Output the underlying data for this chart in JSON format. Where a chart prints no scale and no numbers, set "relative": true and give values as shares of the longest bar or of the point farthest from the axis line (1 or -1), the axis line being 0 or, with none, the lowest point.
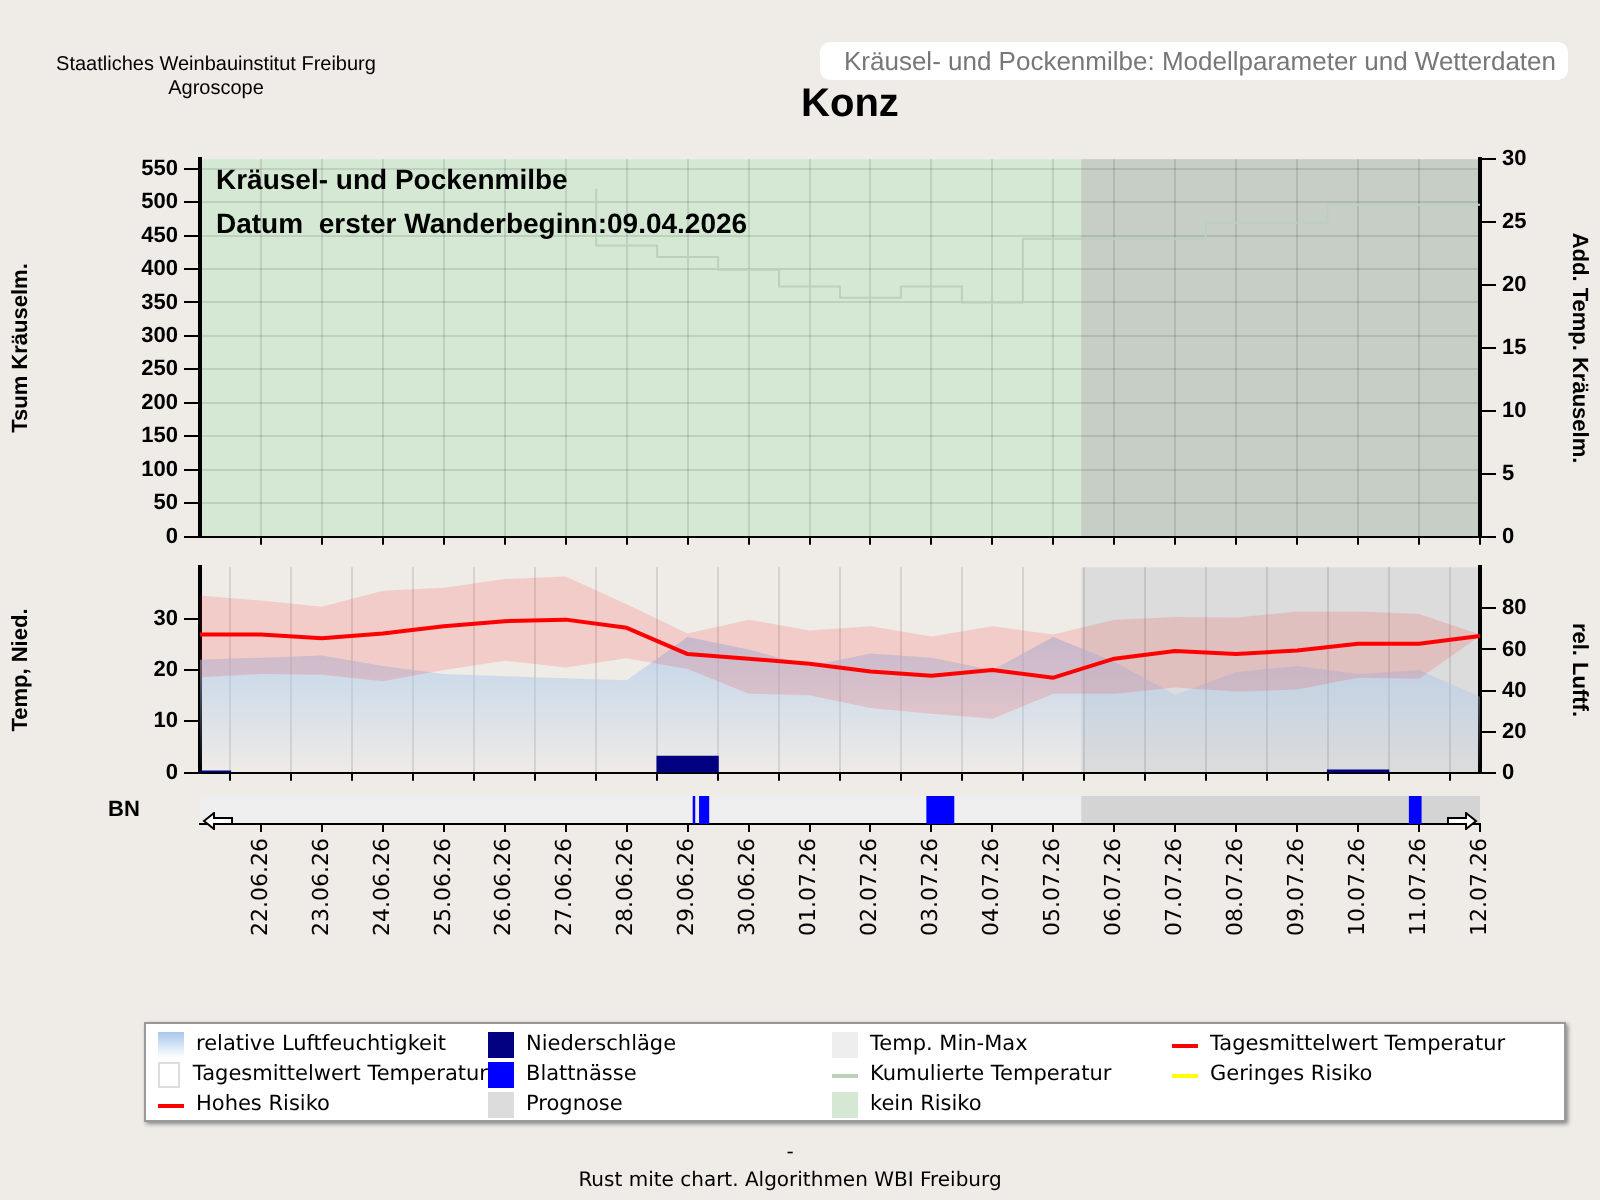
{
  "chart_data": [
    {
      "type": "line",
      "title": "Konz",
      "subtitle": "Kräusel- und Pockenmilbe: Modellparameter und Wetterdaten",
      "ylabel": "Tsum Kräuselm.",
      "y2label": "Add. Temp. Kräuselm.",
      "annotations": [
        "Kräusel- und Pockenmilbe",
        "Datum  erster Wanderbeginn:09.04.2026"
      ],
      "legend": "bottom",
      "xlim": [
        "2026-06-21",
        "2026-07-12"
      ],
      "xticks": [
        {
          "value": "2026-06-22",
          "label": null
        },
        {
          "value": "2026-06-23",
          "label": null
        },
        {
          "value": "2026-06-24",
          "label": null
        },
        {
          "value": "2026-06-25",
          "label": null
        },
        {
          "value": "2026-06-26",
          "label": null
        },
        {
          "value": "2026-06-27",
          "label": null
        },
        {
          "value": "2026-06-28",
          "label": null
        },
        {
          "value": "2026-06-29",
          "label": null
        },
        {
          "value": "2026-06-30",
          "label": null
        },
        {
          "value": "2026-07-01",
          "label": null
        },
        {
          "value": "2026-07-02",
          "label": null
        },
        {
          "value": "2026-07-03",
          "label": null
        },
        {
          "value": "2026-07-04",
          "label": null
        },
        {
          "value": "2026-07-05",
          "label": null
        },
        {
          "value": "2026-07-06",
          "label": null
        },
        {
          "value": "2026-07-07",
          "label": null
        },
        {
          "value": "2026-07-08",
          "label": null
        },
        {
          "value": "2026-07-09",
          "label": null
        },
        {
          "value": "2026-07-10",
          "label": null
        },
        {
          "value": "2026-07-11",
          "label": null
        },
        {
          "value": "2026-07-12",
          "label": null
        }
      ],
      "ylim": [
        0,
        564
      ],
      "yticks": [
        0,
        50,
        100,
        150,
        200,
        250,
        300,
        350,
        400,
        450,
        500,
        550
      ],
      "y2lim": [
        0,
        30
      ],
      "y2ticks": [
        0,
        5,
        10,
        15,
        20,
        25,
        30
      ],
      "grid": true,
      "tick_labels": "y",
      "series": [
        {
          "name": "Kumulierte Temperatur",
          "type": "step",
          "color": "#bcd0bc",
          "x": [
            "2026-06-27T12:00",
            "2026-06-28T12:00",
            "2026-06-29T12:00",
            "2026-06-30T12:00",
            "2026-07-01T12:00",
            "2026-07-02T12:00",
            "2026-07-03T12:00",
            "2026-07-04T12:00",
            "2026-07-05T12:00",
            "2026-07-07T12:00",
            "2026-07-09T12:00",
            "2026-07-11T12:00",
            "2026-07-12"
          ],
          "values": [
            520,
            435,
            418,
            399,
            374,
            357,
            374,
            350,
            445,
            445,
            469,
            496,
            496
          ]
        },
        {
          "name": "Geringes Risiko",
          "type": "line",
          "color": "#ffff00"
        },
        {
          "name": "Hohes Risiko",
          "type": "line",
          "color": "#ff0000"
        }
      ],
      "bands": [
        {
          "axis": "x",
          "from": "2026-06-21",
          "to": "2026-07-12",
          "label": "kein Risiko",
          "color": "#d4e8d4"
        },
        {
          "axis": "x",
          "from": "2026-07-05T11:00",
          "to": "2026-07-12",
          "color": "#c6cec6"
        }
      ]
    },
    {
      "type": "line",
      "ylabel": "Temp, Nied.",
      "y2label": "rel. Luftf.",
      "annotations": [
        "Staatliches Weinbauinstitut Freiburg",
        "Agroscope"
      ],
      "legend": "bottom",
      "xlim": [
        "2026-06-21",
        "2026-07-12"
      ],
      "xticks": [
        {
          "value": "2026-06-22",
          "label": null
        },
        {
          "value": "2026-06-23",
          "label": null
        },
        {
          "value": "2026-06-24",
          "label": null
        },
        {
          "value": "2026-06-25",
          "label": null
        },
        {
          "value": "2026-06-26",
          "label": null
        },
        {
          "value": "2026-06-27",
          "label": null
        },
        {
          "value": "2026-06-28",
          "label": null
        },
        {
          "value": "2026-06-29",
          "label": null
        },
        {
          "value": "2026-06-30",
          "label": null
        },
        {
          "value": "2026-07-01",
          "label": null
        },
        {
          "value": "2026-07-02",
          "label": null
        },
        {
          "value": "2026-07-03",
          "label": null
        },
        {
          "value": "2026-07-04",
          "label": null
        },
        {
          "value": "2026-07-05",
          "label": null
        },
        {
          "value": "2026-07-06",
          "label": null
        },
        {
          "value": "2026-07-07",
          "label": null
        },
        {
          "value": "2026-07-08",
          "label": null
        },
        {
          "value": "2026-07-09",
          "label": null
        },
        {
          "value": "2026-07-10",
          "label": null
        },
        {
          "value": "2026-07-11",
          "label": null
        },
        {
          "value": "2026-07-12",
          "label": null
        }
      ],
      "ylim": [
        0,
        40
      ],
      "yticks": [
        0,
        10,
        20,
        30
      ],
      "y2lim": [
        0,
        100
      ],
      "y2ticks": [
        0,
        20,
        40,
        60,
        80
      ],
      "grid": "x",
      "tick_labels": "y",
      "x": [
        "2026-06-21",
        "2026-06-22",
        "2026-06-23",
        "2026-06-24",
        "2026-06-25",
        "2026-06-26",
        "2026-06-27",
        "2026-06-28",
        "2026-06-29",
        "2026-06-30",
        "2026-07-01",
        "2026-07-02",
        "2026-07-03",
        "2026-07-04",
        "2026-07-05",
        "2026-07-06",
        "2026-07-07",
        "2026-07-08",
        "2026-07-09",
        "2026-07-10",
        "2026-07-11",
        "2026-07-12"
      ],
      "series": [
        {
          "name": "relative Luftfeuchtigkeit",
          "type": "area",
          "axis": "y2",
          "color": "#a8c8ec",
          "values": [
            55,
            56,
            57,
            52,
            48,
            47,
            46,
            45,
            66,
            60,
            52,
            58,
            56,
            50,
            66,
            54,
            38,
            49,
            52,
            48,
            50,
            37
          ]
        },
        {
          "name": "Niederschläge",
          "type": "bar",
          "color": "#000080",
          "values": [
            0.3,
            null,
            null,
            null,
            null,
            null,
            null,
            null,
            3.2,
            null,
            null,
            null,
            null,
            null,
            null,
            null,
            null,
            null,
            null,
            0.5,
            null,
            null
          ]
        },
        {
          "name": "Temp. Min-Max",
          "type": "area",
          "color": "#eeeeee",
          "values": [
            null,
            null,
            null,
            null,
            null,
            null,
            null,
            null,
            null,
            null,
            null,
            null,
            null,
            null,
            null,
            null,
            null,
            null,
            null,
            null,
            null,
            null
          ]
        },
        {
          "name": "Tagesmittelwert Temperatur",
          "type": "line",
          "color": "#ff0000",
          "values": [
            26.9,
            26.9,
            26.2,
            27.1,
            28.5,
            29.5,
            29.8,
            28.2,
            23.1,
            22.2,
            21.2,
            19.7,
            18.9,
            20,
            18.5,
            22.2,
            23.7,
            23.1,
            23.8,
            25.1,
            25.1,
            26.6
          ],
          "lower": [
            18.6,
            19.2,
            19.1,
            17.8,
            20,
            21.8,
            20.5,
            22.3,
            20.2,
            15.4,
            15.1,
            12.6,
            11.5,
            10.5,
            15.4,
            15.4,
            16.6,
            15.8,
            16.2,
            18.5,
            18.3,
            26.6
          ],
          "upper": [
            34.5,
            33.5,
            32.3,
            35.4,
            36,
            37.7,
            38.2,
            32.8,
            27.1,
            29.8,
            27.7,
            28.5,
            26.5,
            28.5,
            26.9,
            29.8,
            30.3,
            30.2,
            31.4,
            31.4,
            30.9,
            26.9
          ]
        },
        {
          "name": "Tagesmittelwert Temperatur",
          "type": "line",
          "color": "#ffffff",
          "values": [
            null,
            null,
            null,
            null,
            null,
            null,
            null,
            null,
            null,
            null,
            null,
            null,
            null,
            null,
            null,
            null,
            null,
            null,
            null,
            null,
            null,
            null
          ]
        }
      ],
      "bands": [
        {
          "axis": "x",
          "from": "2026-07-05T11:00",
          "to": "2026-07-12",
          "label": "Prognose",
          "color": "#dcdcdc"
        }
      ]
    },
    {
      "type": "line",
      "relative": true,
      "ylabel": "BN",
      "legend": "bottom",
      "annotations": [
        "-",
        "Rust mite chart. Algorithmen WBI Freiburg"
      ],
      "xlim": [
        "2026-06-21",
        "2026-07-12"
      ],
      "xticks": [
        {
          "value": "2026-06-22",
          "label": "22.06.26"
        },
        {
          "value": "2026-06-23",
          "label": "23.06.26"
        },
        {
          "value": "2026-06-24",
          "label": "24.06.26"
        },
        {
          "value": "2026-06-25",
          "label": "25.06.26"
        },
        {
          "value": "2026-06-26",
          "label": "26.06.26"
        },
        {
          "value": "2026-06-27",
          "label": "27.06.26"
        },
        {
          "value": "2026-06-28",
          "label": "28.06.26"
        },
        {
          "value": "2026-06-29",
          "label": "29.06.26"
        },
        {
          "value": "2026-06-30",
          "label": "30.06.26"
        },
        {
          "value": "2026-07-01",
          "label": "01.07.26"
        },
        {
          "value": "2026-07-02",
          "label": "02.07.26"
        },
        {
          "value": "2026-07-03",
          "label": "03.07.26"
        },
        {
          "value": "2026-07-04",
          "label": "04.07.26"
        },
        {
          "value": "2026-07-05",
          "label": "05.07.26"
        },
        {
          "value": "2026-07-06",
          "label": "06.07.26"
        },
        {
          "value": "2026-07-07",
          "label": "07.07.26"
        },
        {
          "value": "2026-07-08",
          "label": "08.07.26"
        },
        {
          "value": "2026-07-09",
          "label": "09.07.26"
        },
        {
          "value": "2026-07-10",
          "label": "10.07.26"
        },
        {
          "value": "2026-07-11",
          "label": "11.07.26"
        },
        {
          "value": "2026-07-12",
          "label": "12.07.26"
        }
      ],
      "tick_labels": "x",
      "series": [
        {
          "name": "Blattnässe",
          "type": "area",
          "color": "#0000ff",
          "x": [
            "2026-06-21",
            "2026-06-29T02:00",
            "2026-06-29T02:00",
            "2026-06-29T03:00",
            "2026-06-29T03:00",
            "2026-06-29T04:30",
            "2026-06-29T04:30",
            "2026-06-29T08:30",
            "2026-06-29T08:30",
            "2026-07-02T22:00",
            "2026-07-02T22:00",
            "2026-07-03T09:00",
            "2026-07-03T09:00",
            "2026-07-10T20:00",
            "2026-07-10T20:00",
            "2026-07-11T01:00",
            "2026-07-11T01:00",
            "2026-07-12"
          ],
          "values": [
            0,
            0,
            1,
            1,
            0,
            0,
            1,
            1,
            0,
            0,
            1,
            1,
            0,
            0,
            1,
            1,
            0,
            0
          ]
        }
      ],
      "bands": [
        {
          "axis": "x",
          "from": "2026-07-05T11:00",
          "to": "2026-07-12",
          "color": "#d4d4d4"
        }
      ]
    }
  ]
}
